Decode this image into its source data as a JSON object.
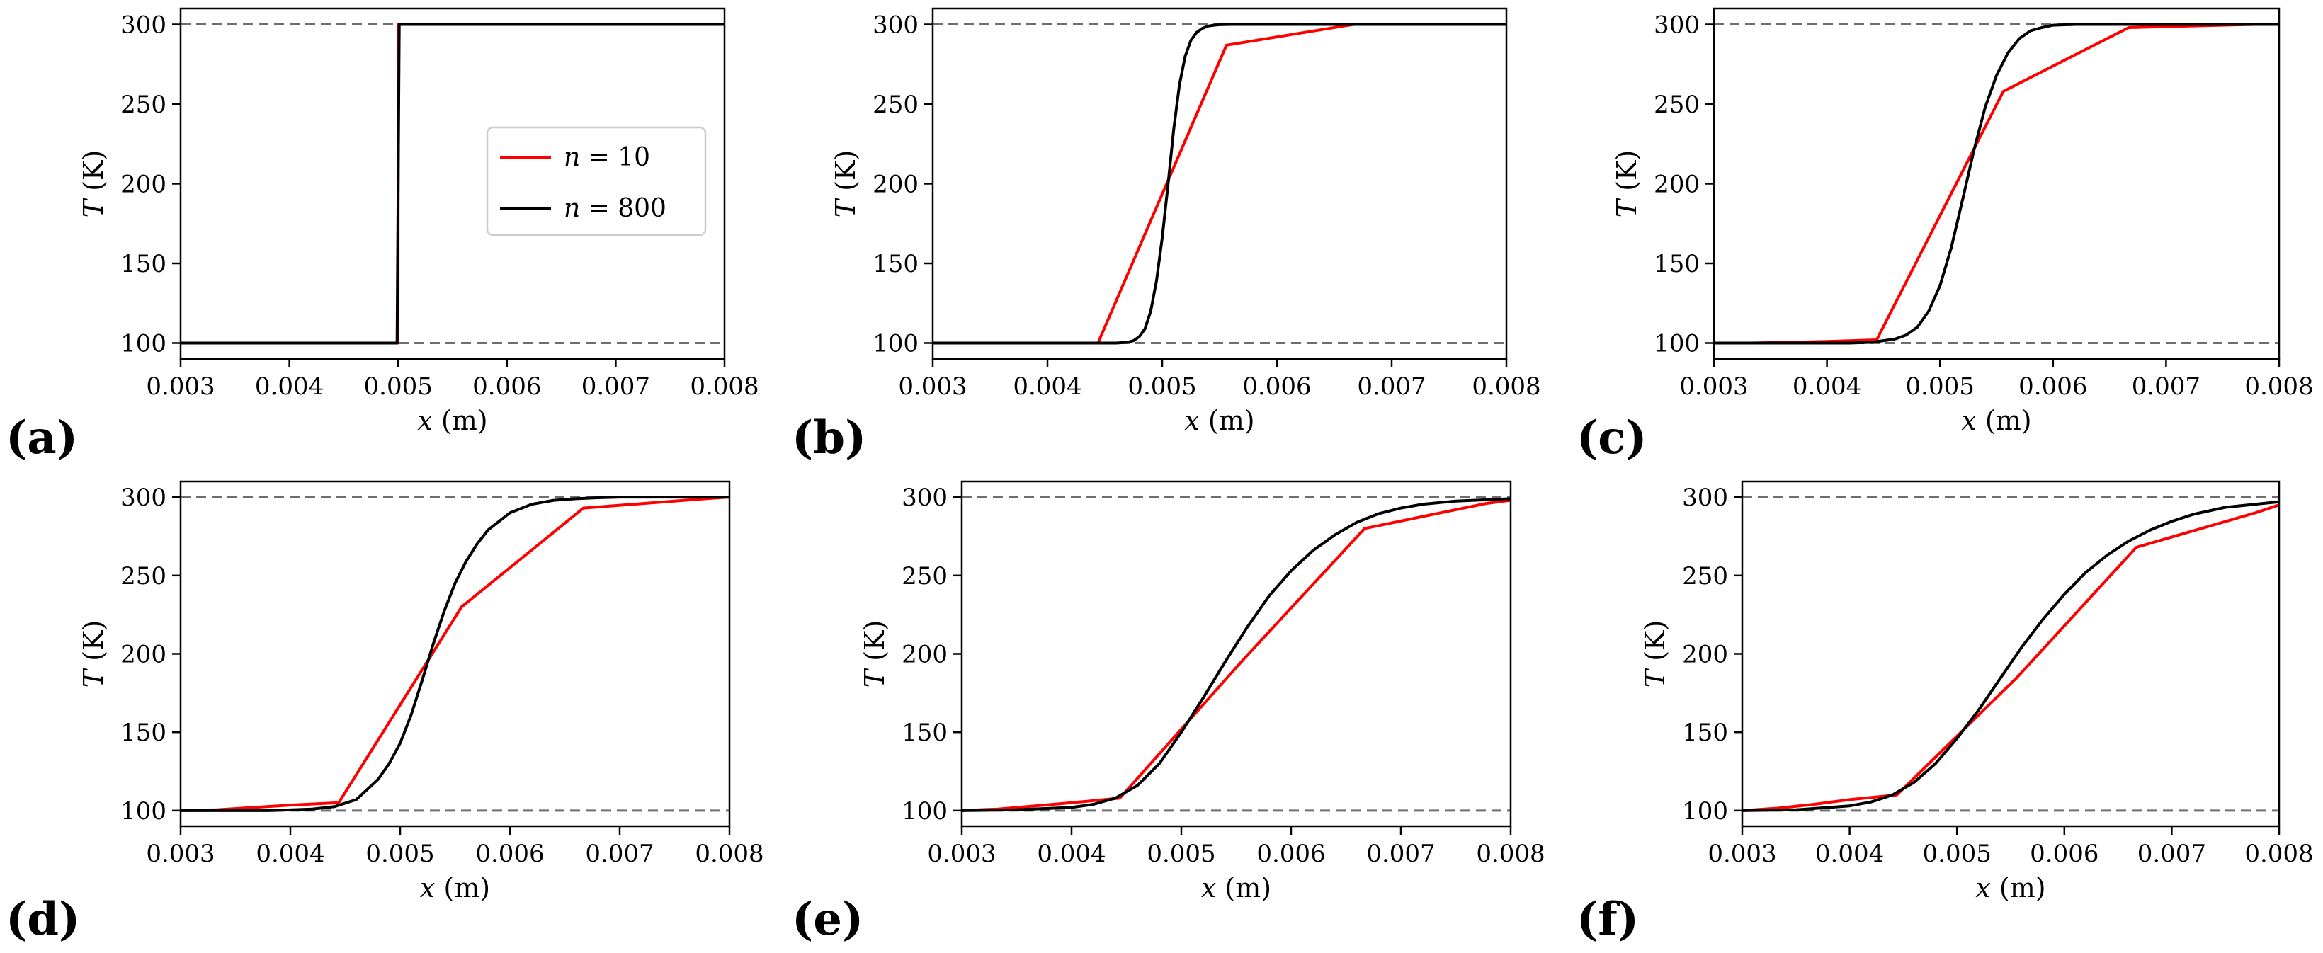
{
  "chart_data": [
    {
      "panel": "(a)",
      "type": "line",
      "xlabel": "x (m)",
      "ylabel": "T (K)",
      "xlim": [
        0.003,
        0.008
      ],
      "ylim": [
        90,
        310
      ],
      "xticks": [
        "0.003",
        "0.004",
        "0.005",
        "0.006",
        "0.007",
        "0.008"
      ],
      "yticks": [
        "100",
        "150",
        "200",
        "250",
        "300"
      ],
      "reference_lines": [
        100,
        300
      ],
      "legend": {
        "position": "center-right",
        "entries": [
          "n = 10",
          "n = 800"
        ]
      },
      "series": [
        {
          "name": "n = 10",
          "color": "#ff0000",
          "x": [
            0.003,
            0.004999,
            0.005001,
            0.008
          ],
          "y": [
            100,
            100,
            300,
            300
          ]
        },
        {
          "name": "n = 800",
          "color": "#000000",
          "x": [
            0.003,
            0.00499,
            0.00501,
            0.008
          ],
          "y": [
            100,
            100,
            300,
            300
          ]
        }
      ]
    },
    {
      "panel": "(b)",
      "type": "line",
      "xlabel": "x (m)",
      "ylabel": "T (K)",
      "xlim": [
        0.003,
        0.008
      ],
      "ylim": [
        90,
        310
      ],
      "xticks": [
        "0.003",
        "0.004",
        "0.005",
        "0.006",
        "0.007",
        "0.008"
      ],
      "yticks": [
        "100",
        "150",
        "200",
        "250",
        "300"
      ],
      "reference_lines": [
        100,
        300
      ],
      "series": [
        {
          "name": "n = 10",
          "color": "#ff0000",
          "x": [
            0.003,
            0.00333,
            0.00367,
            0.004,
            0.00433,
            0.00444,
            0.00556,
            0.00667,
            0.00778,
            0.008
          ],
          "y": [
            100,
            100,
            100,
            100,
            100,
            100,
            287,
            300,
            300,
            300
          ]
        },
        {
          "name": "n = 800",
          "color": "#000000",
          "x": [
            0.003,
            0.0046,
            0.0047,
            0.00475,
            0.0048,
            0.00485,
            0.0049,
            0.00495,
            0.005,
            0.00505,
            0.0051,
            0.00515,
            0.0052,
            0.00525,
            0.0053,
            0.00535,
            0.0054,
            0.00545,
            0.0055,
            0.0056,
            0.0057,
            0.0058,
            0.0059,
            0.008
          ],
          "y": [
            100,
            100,
            100.5,
            101.5,
            104,
            109,
            120,
            139,
            166,
            199,
            234,
            262,
            280,
            290,
            295,
            297.5,
            299,
            299.5,
            299.8,
            300,
            300,
            300,
            300,
            300
          ]
        }
      ]
    },
    {
      "panel": "(c)",
      "type": "line",
      "xlabel": "x (m)",
      "ylabel": "T (K)",
      "xlim": [
        0.003,
        0.008
      ],
      "ylim": [
        90,
        310
      ],
      "xticks": [
        "0.003",
        "0.004",
        "0.005",
        "0.006",
        "0.007",
        "0.008"
      ],
      "yticks": [
        "100",
        "150",
        "200",
        "250",
        "300"
      ],
      "reference_lines": [
        100,
        300
      ],
      "series": [
        {
          "name": "n = 10",
          "color": "#ff0000",
          "x": [
            0.003,
            0.00333,
            0.00367,
            0.004,
            0.00444,
            0.00556,
            0.00667,
            0.00778,
            0.008
          ],
          "y": [
            100,
            100,
            100.5,
            101,
            102,
            258,
            298,
            300,
            300
          ]
        },
        {
          "name": "n = 800",
          "color": "#000000",
          "x": [
            0.003,
            0.0042,
            0.0044,
            0.0046,
            0.0047,
            0.0048,
            0.0049,
            0.005,
            0.0051,
            0.0052,
            0.0053,
            0.0054,
            0.0055,
            0.0056,
            0.0057,
            0.0058,
            0.0059,
            0.006,
            0.0062,
            0.0064,
            0.008
          ],
          "y": [
            100,
            100,
            100.5,
            102.5,
            105,
            110,
            120,
            136,
            160,
            190,
            221,
            248,
            268,
            282,
            291,
            296,
            298,
            299.5,
            300,
            300,
            300
          ]
        }
      ]
    },
    {
      "panel": "(d)",
      "type": "line",
      "xlabel": "x (m)",
      "ylabel": "T (K)",
      "xlim": [
        0.003,
        0.008
      ],
      "ylim": [
        90,
        310
      ],
      "xticks": [
        "0.003",
        "0.004",
        "0.005",
        "0.006",
        "0.007",
        "0.008"
      ],
      "yticks": [
        "100",
        "150",
        "200",
        "250",
        "300"
      ],
      "reference_lines": [
        100,
        300
      ],
      "series": [
        {
          "name": "n = 10",
          "color": "#ff0000",
          "x": [
            0.003,
            0.00333,
            0.00367,
            0.004,
            0.00444,
            0.00556,
            0.00667,
            0.00778,
            0.008
          ],
          "y": [
            100,
            100.5,
            102,
            103.5,
            105,
            230,
            293,
            299,
            300
          ]
        },
        {
          "name": "n = 800",
          "color": "#000000",
          "x": [
            0.003,
            0.0038,
            0.0042,
            0.0044,
            0.0046,
            0.0048,
            0.0049,
            0.005,
            0.0051,
            0.0052,
            0.0053,
            0.0054,
            0.0055,
            0.0056,
            0.0057,
            0.0058,
            0.006,
            0.0062,
            0.0064,
            0.0066,
            0.0068,
            0.007,
            0.0075,
            0.008
          ],
          "y": [
            100,
            100,
            101,
            102.5,
            107,
            120,
            130,
            143,
            161,
            183,
            206,
            227,
            245,
            259,
            270,
            279,
            290,
            295.5,
            298,
            299,
            299.6,
            300,
            300,
            300
          ]
        }
      ]
    },
    {
      "panel": "(e)",
      "type": "line",
      "xlabel": "x (m)",
      "ylabel": "T (K)",
      "xlim": [
        0.003,
        0.008
      ],
      "ylim": [
        90,
        310
      ],
      "xticks": [
        "0.003",
        "0.004",
        "0.005",
        "0.006",
        "0.007",
        "0.008"
      ],
      "yticks": [
        "100",
        "150",
        "200",
        "250",
        "300"
      ],
      "reference_lines": [
        100,
        300
      ],
      "series": [
        {
          "name": "n = 10",
          "color": "#ff0000",
          "x": [
            0.003,
            0.00333,
            0.00367,
            0.004,
            0.00444,
            0.00556,
            0.00667,
            0.00778,
            0.008
          ],
          "y": [
            100,
            101,
            103,
            105,
            108,
            196,
            280,
            296,
            298
          ]
        },
        {
          "name": "n = 800",
          "color": "#000000",
          "x": [
            0.003,
            0.0035,
            0.004,
            0.0042,
            0.0044,
            0.0046,
            0.0048,
            0.005,
            0.0052,
            0.0054,
            0.0056,
            0.0058,
            0.006,
            0.0062,
            0.0064,
            0.0066,
            0.0068,
            0.007,
            0.0072,
            0.0075,
            0.008
          ],
          "y": [
            100,
            100.5,
            102,
            104,
            108,
            116,
            130,
            150,
            172,
            195,
            217,
            237,
            253,
            266,
            276,
            284,
            289.5,
            293,
            295.5,
            297.5,
            299
          ]
        }
      ]
    },
    {
      "panel": "(f)",
      "type": "line",
      "xlabel": "x (m)",
      "ylabel": "T (K)",
      "xlim": [
        0.003,
        0.008
      ],
      "ylim": [
        90,
        310
      ],
      "xticks": [
        "0.003",
        "0.004",
        "0.005",
        "0.006",
        "0.007",
        "0.008"
      ],
      "yticks": [
        "100",
        "150",
        "200",
        "250",
        "300"
      ],
      "reference_lines": [
        100,
        300
      ],
      "series": [
        {
          "name": "n = 10",
          "color": "#ff0000",
          "x": [
            0.003,
            0.00333,
            0.00367,
            0.004,
            0.00444,
            0.00556,
            0.00667,
            0.00778,
            0.008
          ],
          "y": [
            100,
            101.5,
            104,
            107,
            110,
            185,
            268,
            290,
            295
          ]
        },
        {
          "name": "n = 800",
          "color": "#000000",
          "x": [
            0.003,
            0.0035,
            0.004,
            0.0042,
            0.0044,
            0.0046,
            0.0048,
            0.005,
            0.0052,
            0.0054,
            0.0056,
            0.0058,
            0.006,
            0.0062,
            0.0064,
            0.0066,
            0.0068,
            0.007,
            0.0072,
            0.0075,
            0.008
          ],
          "y": [
            100,
            100.5,
            103,
            105.5,
            110,
            118,
            130,
            146,
            164,
            184,
            204,
            222,
            238,
            252,
            263,
            272,
            279,
            284.5,
            289,
            293.5,
            297
          ]
        }
      ]
    }
  ]
}
